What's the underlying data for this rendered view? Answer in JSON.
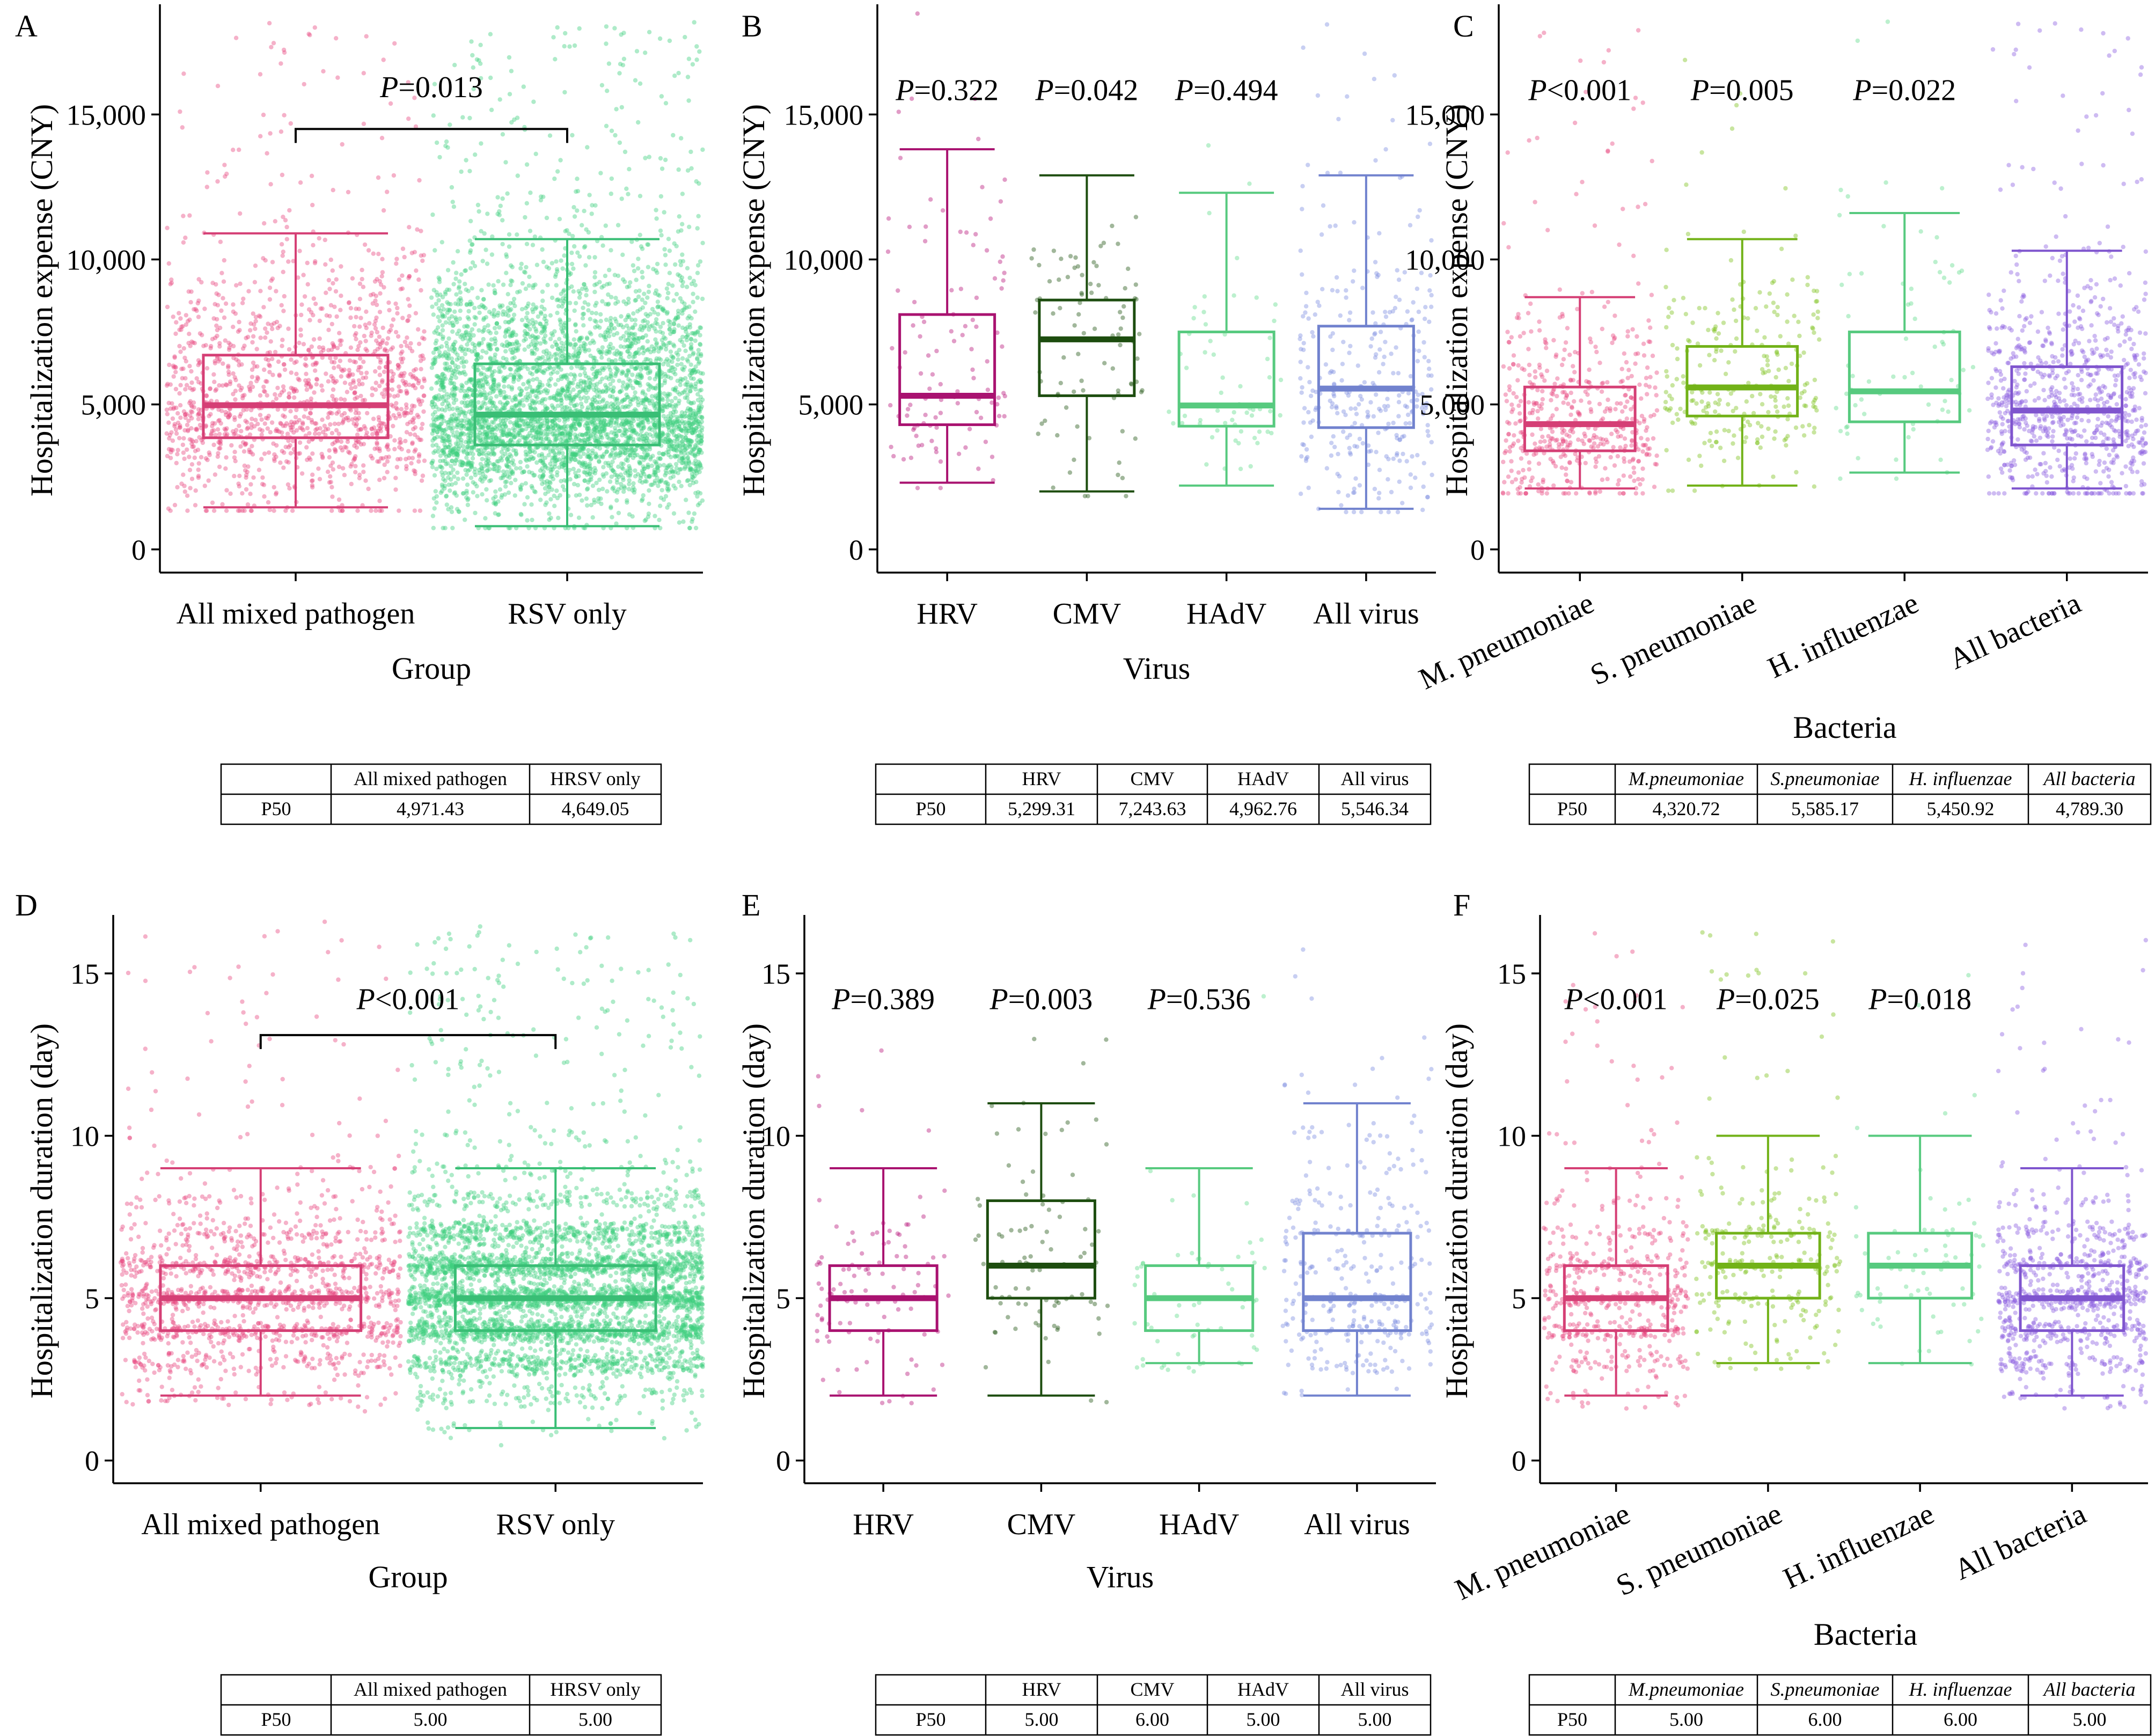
{
  "chart_data": [
    {
      "panel": "A",
      "type": "box",
      "xlabel": "Group",
      "ylabel": "Hospitalization expense (CNY)",
      "yticks": [
        "0",
        "5,000",
        "10,000",
        "15,000"
      ],
      "tick_values": [
        0,
        5000,
        10000,
        15000
      ],
      "ylim": [
        -800,
        18800
      ],
      "categories": [
        "All mixed pathogen",
        "RSV only"
      ],
      "colors": [
        "#e8457f",
        "#3ecf7f"
      ],
      "boxes": [
        {
          "min": 1450,
          "q1": 3850,
          "median": 4971.43,
          "q3": 6700,
          "max": 10900,
          "points": 1400,
          "spread": 0.95
        },
        {
          "min": 800,
          "q1": 3600,
          "median": 4649.05,
          "q3": 6400,
          "max": 10700,
          "points": 4200,
          "spread": 1.0
        }
      ],
      "comparisons": [
        {
          "label_prefix": "P",
          "label_rest": "=0.013",
          "from": 0,
          "to": 1,
          "bracket": true,
          "y": 14500,
          "label_y": 15600
        }
      ],
      "table": {
        "headers": [
          "",
          "All mixed pathogen",
          "HRSV only"
        ],
        "italic_headers": false,
        "row_label": "P50",
        "values": [
          "4,971.43",
          "4,649.05"
        ]
      }
    },
    {
      "panel": "B",
      "type": "box",
      "xlabel": "Virus",
      "ylabel": "Hospitalization expense (CNY)",
      "yticks": [
        "0",
        "5,000",
        "10,000",
        "15,000"
      ],
      "tick_values": [
        0,
        5000,
        10000,
        15000
      ],
      "ylim": [
        -800,
        18800
      ],
      "categories": [
        "HRV",
        "CMV",
        "HAdV",
        "All virus"
      ],
      "colors": [
        "#b8147a",
        "#1f5410",
        "#5fdc8a",
        "#7b8de0"
      ],
      "boxes": [
        {
          "min": 2300,
          "q1": 4300,
          "median": 5299.31,
          "q3": 8100,
          "max": 13800,
          "points": 110,
          "spread": 0.85
        },
        {
          "min": 2000,
          "q1": 5300,
          "median": 7243.63,
          "q3": 8600,
          "max": 12900,
          "points": 90,
          "spread": 0.85
        },
        {
          "min": 2200,
          "q1": 4250,
          "median": 4962.76,
          "q3": 7500,
          "max": 12300,
          "points": 60,
          "spread": 0.85
        },
        {
          "min": 1400,
          "q1": 4200,
          "median": 5546.34,
          "q3": 7700,
          "max": 12900,
          "points": 320,
          "spread": 0.95
        }
      ],
      "comparisons": [
        {
          "label_prefix": "P",
          "label_rest": "=0.322",
          "at": 0,
          "bracket": false,
          "label_y": 15500
        },
        {
          "label_prefix": "P",
          "label_rest": "=0.042",
          "at": 1,
          "bracket": false,
          "label_y": 15500
        },
        {
          "label_prefix": "P",
          "label_rest": "=0.494",
          "at": 2,
          "bracket": false,
          "label_y": 15500
        }
      ],
      "table": {
        "headers": [
          "",
          "HRV",
          "CMV",
          "HAdV",
          "All virus"
        ],
        "italic_headers": false,
        "row_label": "P50",
        "values": [
          "5,299.31",
          "7,243.63",
          "4,962.76",
          "5,546.34"
        ]
      }
    },
    {
      "panel": "C",
      "type": "box",
      "xlabel": "Bacteria",
      "ylabel": "Hospitalization expense (CNY)",
      "yticks": [
        "0",
        "5,000",
        "10,000",
        "15,000"
      ],
      "tick_values": [
        0,
        5000,
        10000,
        15000
      ],
      "ylim": [
        -800,
        18800
      ],
      "categories": [
        "M. pneumoniae",
        "S. pneumoniae",
        "H. influenzae",
        "All bacteria"
      ],
      "rotate_labels": true,
      "colors": [
        "#e8457f",
        "#7cc21a",
        "#5fdc8a",
        "#8a5ce0"
      ],
      "boxes": [
        {
          "min": 2100,
          "q1": 3400,
          "median": 4320.72,
          "q3": 5600,
          "max": 8700,
          "points": 520,
          "spread": 0.95
        },
        {
          "min": 2200,
          "q1": 4600,
          "median": 5585.17,
          "q3": 7000,
          "max": 10700,
          "points": 260,
          "spread": 0.95
        },
        {
          "min": 2650,
          "q1": 4400,
          "median": 5450.92,
          "q3": 7500,
          "max": 11600,
          "points": 70,
          "spread": 0.85
        },
        {
          "min": 2100,
          "q1": 3600,
          "median": 4789.3,
          "q3": 6300,
          "max": 10300,
          "points": 800,
          "spread": 0.98
        }
      ],
      "comparisons": [
        {
          "label_prefix": "P",
          "label_rest": "<0.001",
          "at": 0,
          "bracket": false,
          "label_y": 15500
        },
        {
          "label_prefix": "P",
          "label_rest": "=0.005",
          "at": 1,
          "bracket": false,
          "label_y": 15500
        },
        {
          "label_prefix": "P",
          "label_rest": "=0.022",
          "at": 2,
          "bracket": false,
          "label_y": 15500
        }
      ],
      "table": {
        "headers": [
          "",
          "M.pneumoniae",
          "S.pneumoniae",
          "H. influenzae",
          "All bacteria"
        ],
        "italic_headers": true,
        "row_label": "P50",
        "values": [
          "4,320.72",
          "5,585.17",
          "5,450.92",
          "4,789.30"
        ]
      }
    },
    {
      "panel": "D",
      "type": "box",
      "xlabel": "Group",
      "ylabel": "Hospitalization duration (day)",
      "yticks": [
        "0",
        "5",
        "10",
        "15"
      ],
      "tick_values": [
        0,
        5,
        10,
        15
      ],
      "ylim": [
        -0.7,
        16.8
      ],
      "integer_y": true,
      "categories": [
        "All mixed pathogen",
        "RSV only"
      ],
      "colors": [
        "#e8457f",
        "#3ecf7f"
      ],
      "boxes": [
        {
          "min": 2,
          "q1": 4,
          "median": 5,
          "q3": 6,
          "max": 9,
          "points": 1400,
          "spread": 0.95
        },
        {
          "min": 1,
          "q1": 4,
          "median": 5,
          "q3": 6,
          "max": 9,
          "points": 4200,
          "spread": 1.0
        }
      ],
      "comparisons": [
        {
          "label_prefix": "P",
          "label_rest": "<0.001",
          "from": 0,
          "to": 1,
          "bracket": true,
          "y": 13.1,
          "label_y": 13.9
        }
      ],
      "table": {
        "headers": [
          "",
          "All mixed pathogen",
          "HRSV only"
        ],
        "italic_headers": false,
        "row_label": "P50",
        "values": [
          "5.00",
          "5.00"
        ]
      }
    },
    {
      "panel": "E",
      "type": "box",
      "xlabel": "Virus",
      "ylabel": "Hospitalization duration (day)",
      "yticks": [
        "0",
        "5",
        "10",
        "15"
      ],
      "tick_values": [
        0,
        5,
        10,
        15
      ],
      "ylim": [
        -0.7,
        16.8
      ],
      "integer_y": true,
      "categories": [
        "HRV",
        "CMV",
        "HAdV",
        "All virus"
      ],
      "colors": [
        "#b8147a",
        "#1f5410",
        "#5fdc8a",
        "#7b8de0"
      ],
      "boxes": [
        {
          "min": 2,
          "q1": 4,
          "median": 5,
          "q3": 6,
          "max": 9,
          "points": 110,
          "spread": 0.85
        },
        {
          "min": 2,
          "q1": 5,
          "median": 6,
          "q3": 8,
          "max": 11,
          "points": 90,
          "spread": 0.85
        },
        {
          "min": 3,
          "q1": 4,
          "median": 5,
          "q3": 6,
          "max": 9,
          "points": 60,
          "spread": 0.85
        },
        {
          "min": 2,
          "q1": 4,
          "median": 5,
          "q3": 7,
          "max": 11,
          "points": 320,
          "spread": 0.95
        }
      ],
      "comparisons": [
        {
          "label_prefix": "P",
          "label_rest": "=0.389",
          "at": 0,
          "bracket": false,
          "label_y": 13.9
        },
        {
          "label_prefix": "P",
          "label_rest": "=0.003",
          "at": 1,
          "bracket": false,
          "label_y": 13.9
        },
        {
          "label_prefix": "P",
          "label_rest": "=0.536",
          "at": 2,
          "bracket": false,
          "label_y": 13.9
        }
      ],
      "table": {
        "headers": [
          "",
          "HRV",
          "CMV",
          "HAdV",
          "All virus"
        ],
        "italic_headers": false,
        "row_label": "P50",
        "values": [
          "5.00",
          "6.00",
          "5.00",
          "5.00"
        ]
      }
    },
    {
      "panel": "F",
      "type": "box",
      "xlabel": "Bacteria",
      "ylabel": "Hospitalization duration (day)",
      "yticks": [
        "0",
        "5",
        "10",
        "15"
      ],
      "tick_values": [
        0,
        5,
        10,
        15
      ],
      "ylim": [
        -0.7,
        16.8
      ],
      "integer_y": true,
      "categories": [
        "M. pneumoniae",
        "S. pneumoniae",
        "H. influenzae",
        "All bacteria"
      ],
      "rotate_labels": true,
      "colors": [
        "#e8457f",
        "#7cc21a",
        "#5fdc8a",
        "#8a5ce0"
      ],
      "boxes": [
        {
          "min": 2,
          "q1": 4,
          "median": 5,
          "q3": 6,
          "max": 9,
          "points": 520,
          "spread": 0.95
        },
        {
          "min": 3,
          "q1": 5,
          "median": 6,
          "q3": 7,
          "max": 10,
          "points": 260,
          "spread": 0.95
        },
        {
          "min": 3,
          "q1": 5,
          "median": 6,
          "q3": 7,
          "max": 10,
          "points": 70,
          "spread": 0.85
        },
        {
          "min": 2,
          "q1": 4,
          "median": 5,
          "q3": 6,
          "max": 9,
          "points": 800,
          "spread": 0.98
        }
      ],
      "comparisons": [
        {
          "label_prefix": "P",
          "label_rest": "<0.001",
          "at": 0,
          "bracket": false,
          "label_y": 13.9
        },
        {
          "label_prefix": "P",
          "label_rest": "=0.025",
          "at": 1,
          "bracket": false,
          "label_y": 13.9
        },
        {
          "label_prefix": "P",
          "label_rest": "=0.018",
          "at": 2,
          "bracket": false,
          "label_y": 13.9
        }
      ],
      "table": {
        "headers": [
          "",
          "M.pneumoniae",
          "S.pneumoniae",
          "H. influenzae",
          "All bacteria"
        ],
        "italic_headers": true,
        "row_label": "P50",
        "values": [
          "5.00",
          "6.00",
          "6.00",
          "5.00"
        ]
      }
    }
  ]
}
